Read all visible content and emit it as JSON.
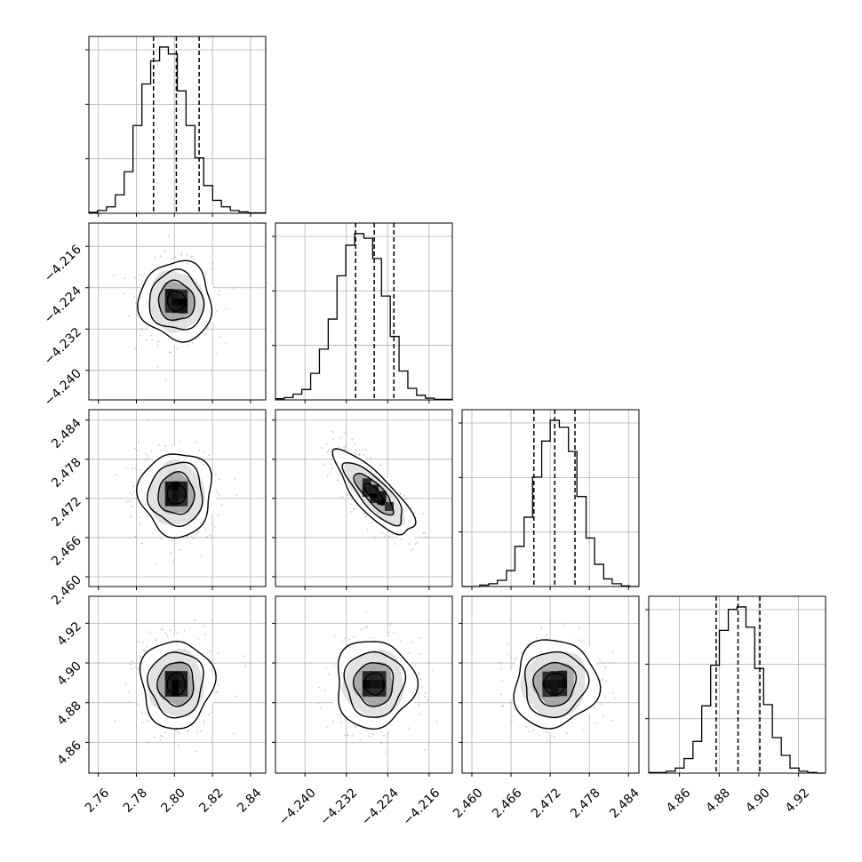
{
  "chart_data": {
    "type": "corner",
    "grid": true,
    "parameters": [
      {
        "range": [
          2.755,
          2.848
        ],
        "ticks": [
          "2.76",
          "2.78",
          "2.80",
          "2.82",
          "2.84"
        ],
        "quantiles": [
          2.789,
          2.801,
          2.813
        ],
        "histogram": {
          "edges": [
            2.755,
            2.7596,
            2.7643,
            2.7689,
            2.7736,
            2.7782,
            2.7829,
            2.7875,
            2.7922,
            2.7968,
            2.8015,
            2.8061,
            2.8108,
            2.8154,
            2.8201,
            2.8247,
            2.8294,
            2.834,
            2.8387,
            2.8433,
            2.848
          ],
          "counts": [
            2,
            6,
            14,
            40,
            90,
            190,
            280,
            330,
            360,
            345,
            265,
            190,
            120,
            60,
            28,
            14,
            6,
            3,
            1,
            1
          ]
        }
      },
      {
        "range": [
          -4.2457,
          -4.2115
        ],
        "ticks": [
          "−4.240",
          "−4.232",
          "−4.224",
          "−4.216"
        ],
        "quantiles": [
          -4.2302,
          -4.2266,
          -4.2228
        ],
        "histogram": {
          "edges": [
            -4.2457,
            -4.244,
            -4.2423,
            -4.2406,
            -4.2389,
            -4.2372,
            -4.2355,
            -4.2338,
            -4.2321,
            -4.2304,
            -4.2286,
            -4.2269,
            -4.2252,
            -4.2235,
            -4.2218,
            -4.2201,
            -4.2184,
            -4.2167,
            -4.215,
            -4.2133,
            -4.2115
          ],
          "counts": [
            2,
            4,
            10,
            18,
            46,
            88,
            140,
            215,
            268,
            288,
            280,
            245,
            180,
            110,
            50,
            20,
            8,
            3,
            1,
            1
          ]
        }
      },
      {
        "range": [
          2.4585,
          2.4856
        ],
        "ticks": [
          "2.460",
          "2.466",
          "2.472",
          "2.478",
          "2.484"
        ],
        "quantiles": [
          2.4695,
          2.4727,
          2.4758
        ],
        "histogram": {
          "edges": [
            2.4585,
            2.4599,
            2.4612,
            2.4626,
            2.4639,
            2.4653,
            2.4666,
            2.468,
            2.4693,
            2.4707,
            2.472,
            2.4734,
            2.4748,
            2.4761,
            2.4775,
            2.4788,
            2.4802,
            2.4815,
            2.4829,
            2.4842,
            2.4856
          ],
          "counts": [
            0,
            0,
            2,
            4,
            9,
            23,
            58,
            100,
            158,
            210,
            240,
            230,
            195,
            130,
            70,
            32,
            11,
            4,
            1,
            0
          ]
        }
      },
      {
        "range": [
          4.8445,
          4.9336
        ],
        "ticks": [
          "4.86",
          "4.88",
          "4.90",
          "4.92"
        ],
        "quantiles": [
          4.8785,
          4.8895,
          4.9005
        ],
        "histogram": {
          "edges": [
            4.8445,
            4.849,
            4.8534,
            4.8579,
            4.8623,
            4.8668,
            4.8712,
            4.8757,
            4.8801,
            4.8846,
            4.889,
            4.8935,
            4.8979,
            4.9024,
            4.9068,
            4.9113,
            4.9157,
            4.9202,
            4.9246,
            4.9291,
            4.9336
          ],
          "counts": [
            1,
            1,
            3,
            8,
            23,
            50,
            106,
            170,
            225,
            258,
            262,
            230,
            165,
            108,
            56,
            28,
            8,
            3,
            1,
            0
          ]
        }
      }
    ],
    "pairs": [
      {
        "row": 1,
        "col": 0,
        "mean": [
          2.801,
          -4.2266
        ],
        "sd": [
          0.0095,
          0.0038
        ],
        "rho": -0.05
      },
      {
        "row": 2,
        "col": 0,
        "mean": [
          2.801,
          2.4727
        ],
        "sd": [
          0.0095,
          0.0032
        ],
        "rho": 0.0
      },
      {
        "row": 2,
        "col": 1,
        "mean": [
          -4.2266,
          2.4727
        ],
        "sd": [
          0.0038,
          0.0032
        ],
        "rho": -0.8
      },
      {
        "row": 3,
        "col": 0,
        "mean": [
          2.801,
          4.8895
        ],
        "sd": [
          0.0095,
          0.011
        ],
        "rho": 0.0
      },
      {
        "row": 3,
        "col": 1,
        "mean": [
          -4.2266,
          4.8895
        ],
        "sd": [
          0.0038,
          0.011
        ],
        "rho": 0.0
      },
      {
        "row": 3,
        "col": 2,
        "mean": [
          2.4727,
          4.8895
        ],
        "sd": [
          0.0032,
          0.011
        ],
        "rho": 0.05
      }
    ]
  }
}
